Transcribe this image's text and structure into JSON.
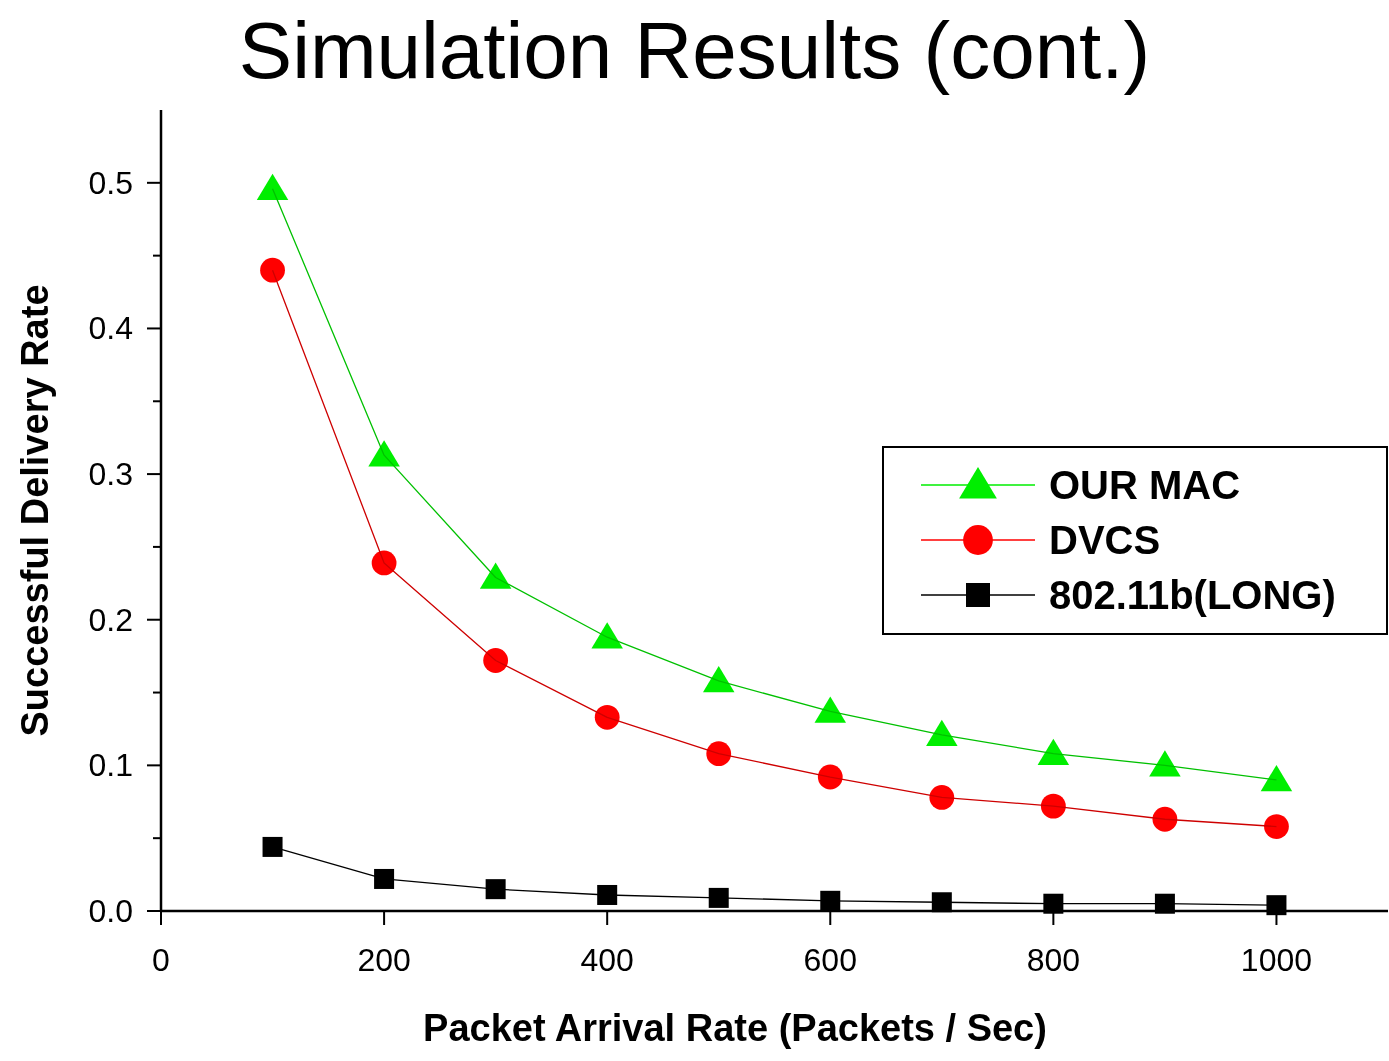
{
  "chart_data": {
    "type": "line",
    "title": "Simulation Results (cont.)",
    "xlabel": "Packet Arrival Rate (Packets / Sec)",
    "ylabel": "Successful Delivery Rate",
    "x": [
      100,
      200,
      300,
      400,
      500,
      600,
      700,
      800,
      900,
      1000
    ],
    "series": [
      {
        "name": "OUR MAC",
        "color": "#00ee00",
        "marker": "triangle",
        "values": [
          0.496,
          0.313,
          0.229,
          0.188,
          0.158,
          0.137,
          0.121,
          0.108,
          0.1,
          0.09
        ]
      },
      {
        "name": "DVCS",
        "color": "#ff0000",
        "marker": "circle",
        "values": [
          0.44,
          0.239,
          0.172,
          0.133,
          0.108,
          0.092,
          0.078,
          0.072,
          0.063,
          0.058
        ]
      },
      {
        "name": "802.11b(LONG)",
        "color": "#000000",
        "marker": "square",
        "values": [
          0.044,
          0.022,
          0.015,
          0.011,
          0.009,
          0.007,
          0.006,
          0.005,
          0.005,
          0.004
        ]
      }
    ],
    "xlim": [
      0,
      1100
    ],
    "xticks": [
      0,
      200,
      400,
      600,
      800,
      1000
    ],
    "ylim": [
      0,
      0.55
    ],
    "yticks": [
      {
        "value": 0,
        "label": "0.0"
      },
      {
        "value": 0.05,
        "label": null
      },
      {
        "value": 0.1,
        "label": "0.1"
      },
      {
        "value": 0.15,
        "label": null
      },
      {
        "value": 0.2,
        "label": "0.2"
      },
      {
        "value": 0.25,
        "label": null
      },
      {
        "value": 0.3,
        "label": "0.3"
      },
      {
        "value": 0.35,
        "label": null
      },
      {
        "value": 0.4,
        "label": "0.4"
      },
      {
        "value": 0.45,
        "label": null
      },
      {
        "value": 0.5,
        "label": "0.5"
      }
    ],
    "grid": false,
    "legend": "right",
    "line_style": "solid"
  }
}
